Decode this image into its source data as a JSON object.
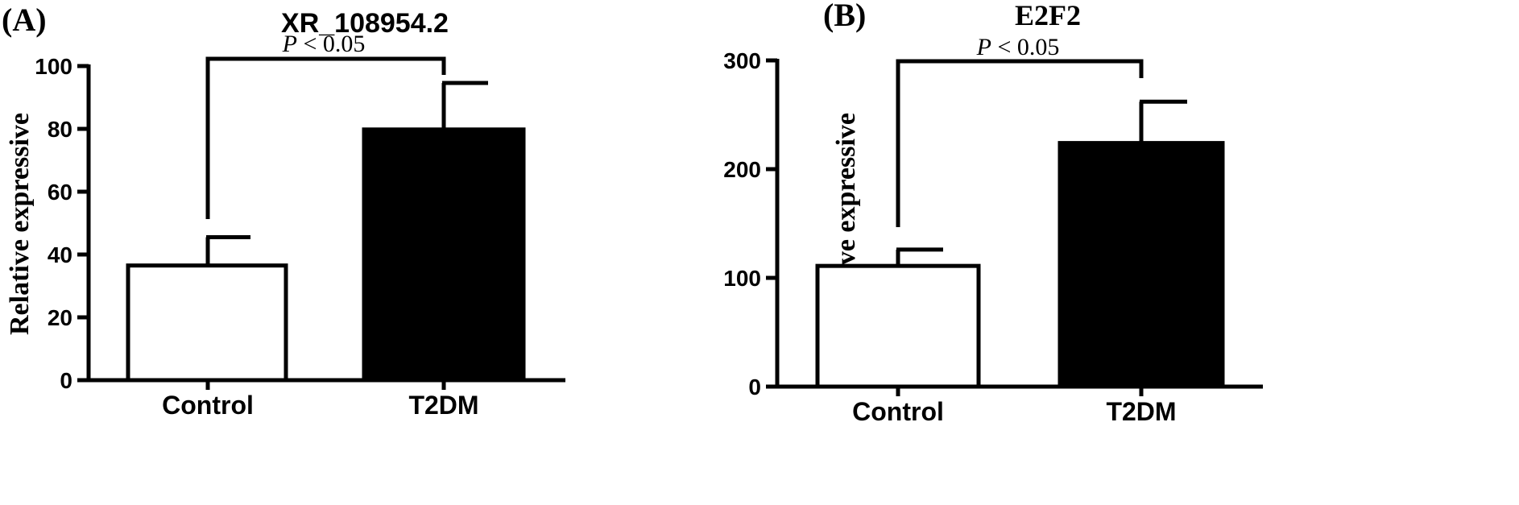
{
  "chart_data": [
    {
      "type": "bar",
      "panel_label": "(A)",
      "title": "XR_108954.2",
      "ylabel": "Relative expressive",
      "xlabel": "",
      "categories": [
        "Control",
        "T2DM"
      ],
      "values": [
        36.5,
        79.8
      ],
      "errors": [
        9.0,
        14.8
      ],
      "bar_colors": [
        "#ffffff",
        "#000000"
      ],
      "ylim": [
        0,
        100
      ],
      "yticks": [
        "0",
        "20",
        "40",
        "60",
        "80",
        "100"
      ],
      "significance": {
        "p_symbol": "P",
        "rest": " < 0.05",
        "between": [
          "Control",
          "T2DM"
        ]
      },
      "grid": false,
      "legend": "none"
    },
    {
      "type": "bar",
      "panel_label": "(B)",
      "title": "E2F2",
      "ylabel": "Relative expressive",
      "xlabel": "",
      "categories": [
        "Control",
        "T2DM"
      ],
      "values": [
        111,
        224
      ],
      "errors": [
        15,
        38
      ],
      "bar_colors": [
        "#ffffff",
        "#000000"
      ],
      "ylim": [
        0,
        300
      ],
      "yticks": [
        "0",
        "100",
        "200",
        "300"
      ],
      "significance": {
        "p_symbol": "P",
        "rest": " < 0.05",
        "between": [
          "Control",
          "T2DM"
        ]
      },
      "grid": false,
      "legend": "none"
    }
  ]
}
